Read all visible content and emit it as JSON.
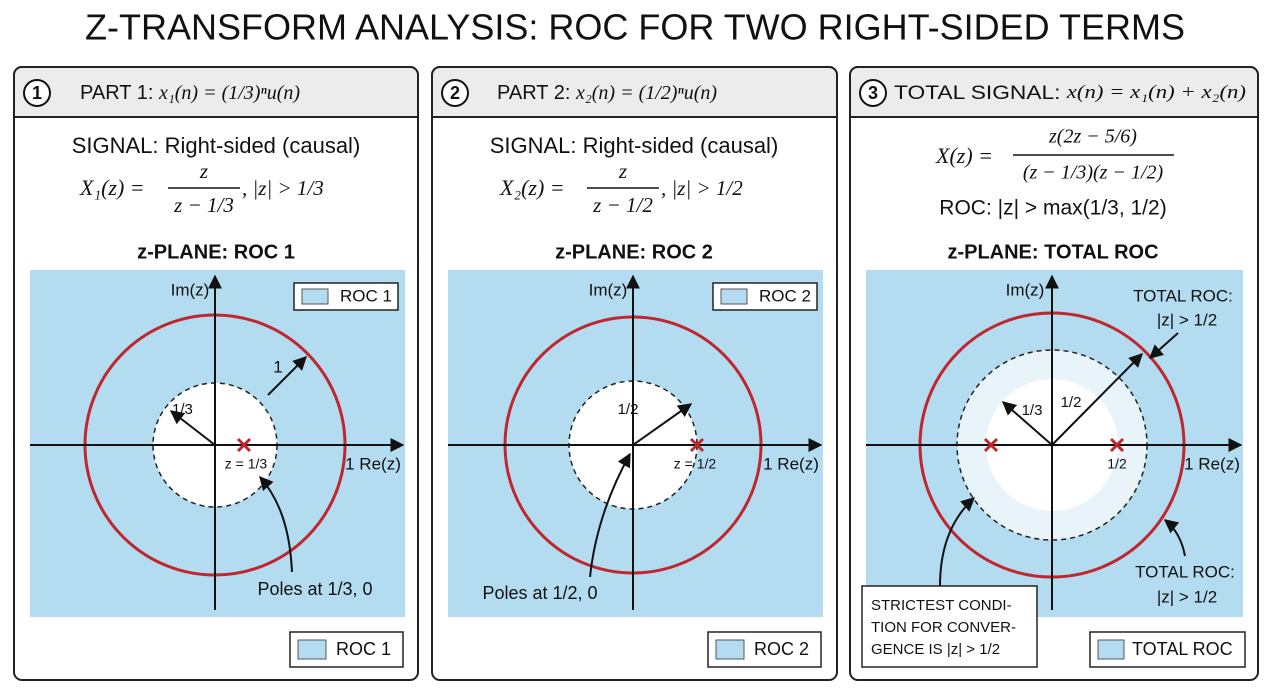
{
  "title": "Z-TRANSFORM ANALYSIS: ROC FOR TWO RIGHT-SIDED TERMS",
  "panels": [
    {
      "number": "1",
      "header": "PART 1:",
      "header_formula": "x₁(n) = (1/3)ⁿu(n)",
      "signal": "SIGNAL: Right-sided (causal)",
      "transform_lhs": "X₁(z) =",
      "transform_num": "z",
      "transform_den": "z − 1/3",
      "transform_roc": ",  |z| > 1/3",
      "plane_title": "z-PLANE: ROC 1",
      "axis_y": "Im(z)",
      "axis_x": "1 Re(z)",
      "legend_top": "ROC 1",
      "annotations": [
        "1/3",
        "1",
        "z = 1/3",
        "Poles at 1/3, 0"
      ],
      "legend_bottom": "ROC 1"
    },
    {
      "number": "2",
      "header": "PART 2:",
      "header_formula": "x₂(n) = (1/2)ⁿu(n)",
      "signal": "SIGNAL: Right-sided (causal)",
      "transform_lhs": "X₂(z) =",
      "transform_num": "z",
      "transform_den": "z − 1/2",
      "transform_roc": ",  |z| > 1/2",
      "plane_title": "z-PLANE: ROC 2",
      "axis_y": "Im(z)",
      "axis_x": "1 Re(z)",
      "legend_top": "ROC 2",
      "annotations": [
        "1/2",
        "z = 1/2",
        "Poles at 1/2, 0"
      ],
      "legend_bottom": "ROC 2"
    },
    {
      "number": "3",
      "header": "TOTAL SIGNAL:",
      "header_formula": "x(n) = x₁(n) + x₂(n)",
      "transform_lhs": "X(z) =",
      "transform_num": "z(2z − 5/6)",
      "transform_den": "(z − 1/3)(z − 1/2)",
      "transform_roc": "ROC: |z| > max(1/3, 1/2)",
      "plane_title": "z-PLANE: TOTAL ROC",
      "axis_y": "Im(z)",
      "axis_x": "1 Re(z)",
      "annotations": [
        "TOTAL ROC:",
        "|z| > 1/2",
        "1/3",
        "1/2",
        "1/2",
        "TOTAL ROC:",
        "|z| > 1/2"
      ],
      "note": [
        "STRICTEST CONDI-",
        "TION FOR CONVER-",
        "GENCE IS |z| > 1/2"
      ],
      "legend_bottom": "TOTAL ROC"
    }
  ]
}
